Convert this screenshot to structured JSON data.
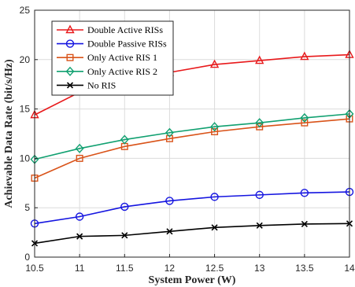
{
  "chart_data": {
    "type": "line",
    "title": "",
    "xlabel": "System Power (W)",
    "ylabel": "Achievable Data Rate (bit/s/Hz)",
    "xlim": [
      10.5,
      14
    ],
    "ylim": [
      0,
      25
    ],
    "x": [
      10.5,
      11,
      11.5,
      12,
      12.5,
      13,
      13.5,
      14
    ],
    "xticks": [
      "10.5",
      "11",
      "11.5",
      "12",
      "12.5",
      "13",
      "13.5",
      "14"
    ],
    "yticks": [
      "0",
      "5",
      "10",
      "15",
      "20",
      "25"
    ],
    "grid": true,
    "legend_position": "top-left",
    "series": [
      {
        "name": "Double Active RISs",
        "color": "#e8191b",
        "marker": "triangle",
        "values": [
          14.4,
          16.7,
          17.8,
          18.7,
          19.5,
          19.9,
          20.3,
          20.5
        ]
      },
      {
        "name": "Double Passive RISs",
        "color": "#1515e0",
        "marker": "circle",
        "values": [
          3.4,
          4.1,
          5.1,
          5.7,
          6.1,
          6.3,
          6.5,
          6.6
        ]
      },
      {
        "name": "Only Active RIS 1",
        "color": "#d95319",
        "marker": "square",
        "values": [
          8.0,
          10.0,
          11.2,
          12.0,
          12.7,
          13.2,
          13.6,
          14.0
        ]
      },
      {
        "name": "Only Active RIS 2",
        "color": "#10a070",
        "marker": "diamond",
        "values": [
          9.9,
          11.0,
          11.9,
          12.6,
          13.2,
          13.6,
          14.1,
          14.5
        ]
      },
      {
        "name": "No RIS",
        "color": "#000000",
        "marker": "x",
        "values": [
          1.4,
          2.1,
          2.2,
          2.6,
          3.0,
          3.2,
          3.35,
          3.4
        ]
      }
    ]
  }
}
